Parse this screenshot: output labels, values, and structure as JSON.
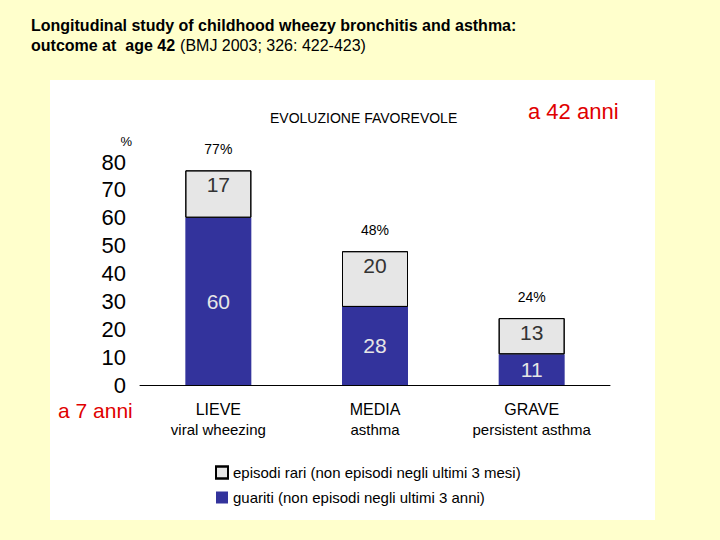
{
  "chart_data": {
    "type": "bar",
    "title": "Longitudinal study of childhood wheezy bronchitis and asthma:\noutcome at  age 42",
    "subtitle": "(BMJ 2003; 326: 422-423)",
    "ylabel": "%",
    "annotations": [
      "EVOLUZIONE FAVOREVOLE",
      "a 42 anni",
      "a 7 anni"
    ],
    "categories": [
      "LIEVE\nviral wheezing",
      "MEDIA\nasthma",
      "GRAVE\npersistent asthma"
    ],
    "series": [
      {
        "name": "guariti (non episodi negli ultimi 3 anni)",
        "color": "#33339c",
        "values": [
          60,
          28,
          11
        ]
      },
      {
        "name": "episodi rari (non episodi negli ultimi 3 mesi)",
        "color": "#e6e6e6",
        "values": [
          17,
          20,
          13
        ]
      }
    ],
    "totals": {
      "values": [
        77,
        48,
        24
      ],
      "value_labels": [
        "77%",
        "48%",
        "24%"
      ]
    },
    "stacked": true,
    "data_labels": true,
    "ylim": [
      0,
      80
    ],
    "yticks": [
      0,
      10,
      20,
      30,
      40,
      50,
      60,
      70,
      80
    ],
    "grid": false,
    "legend": "bottom"
  }
}
